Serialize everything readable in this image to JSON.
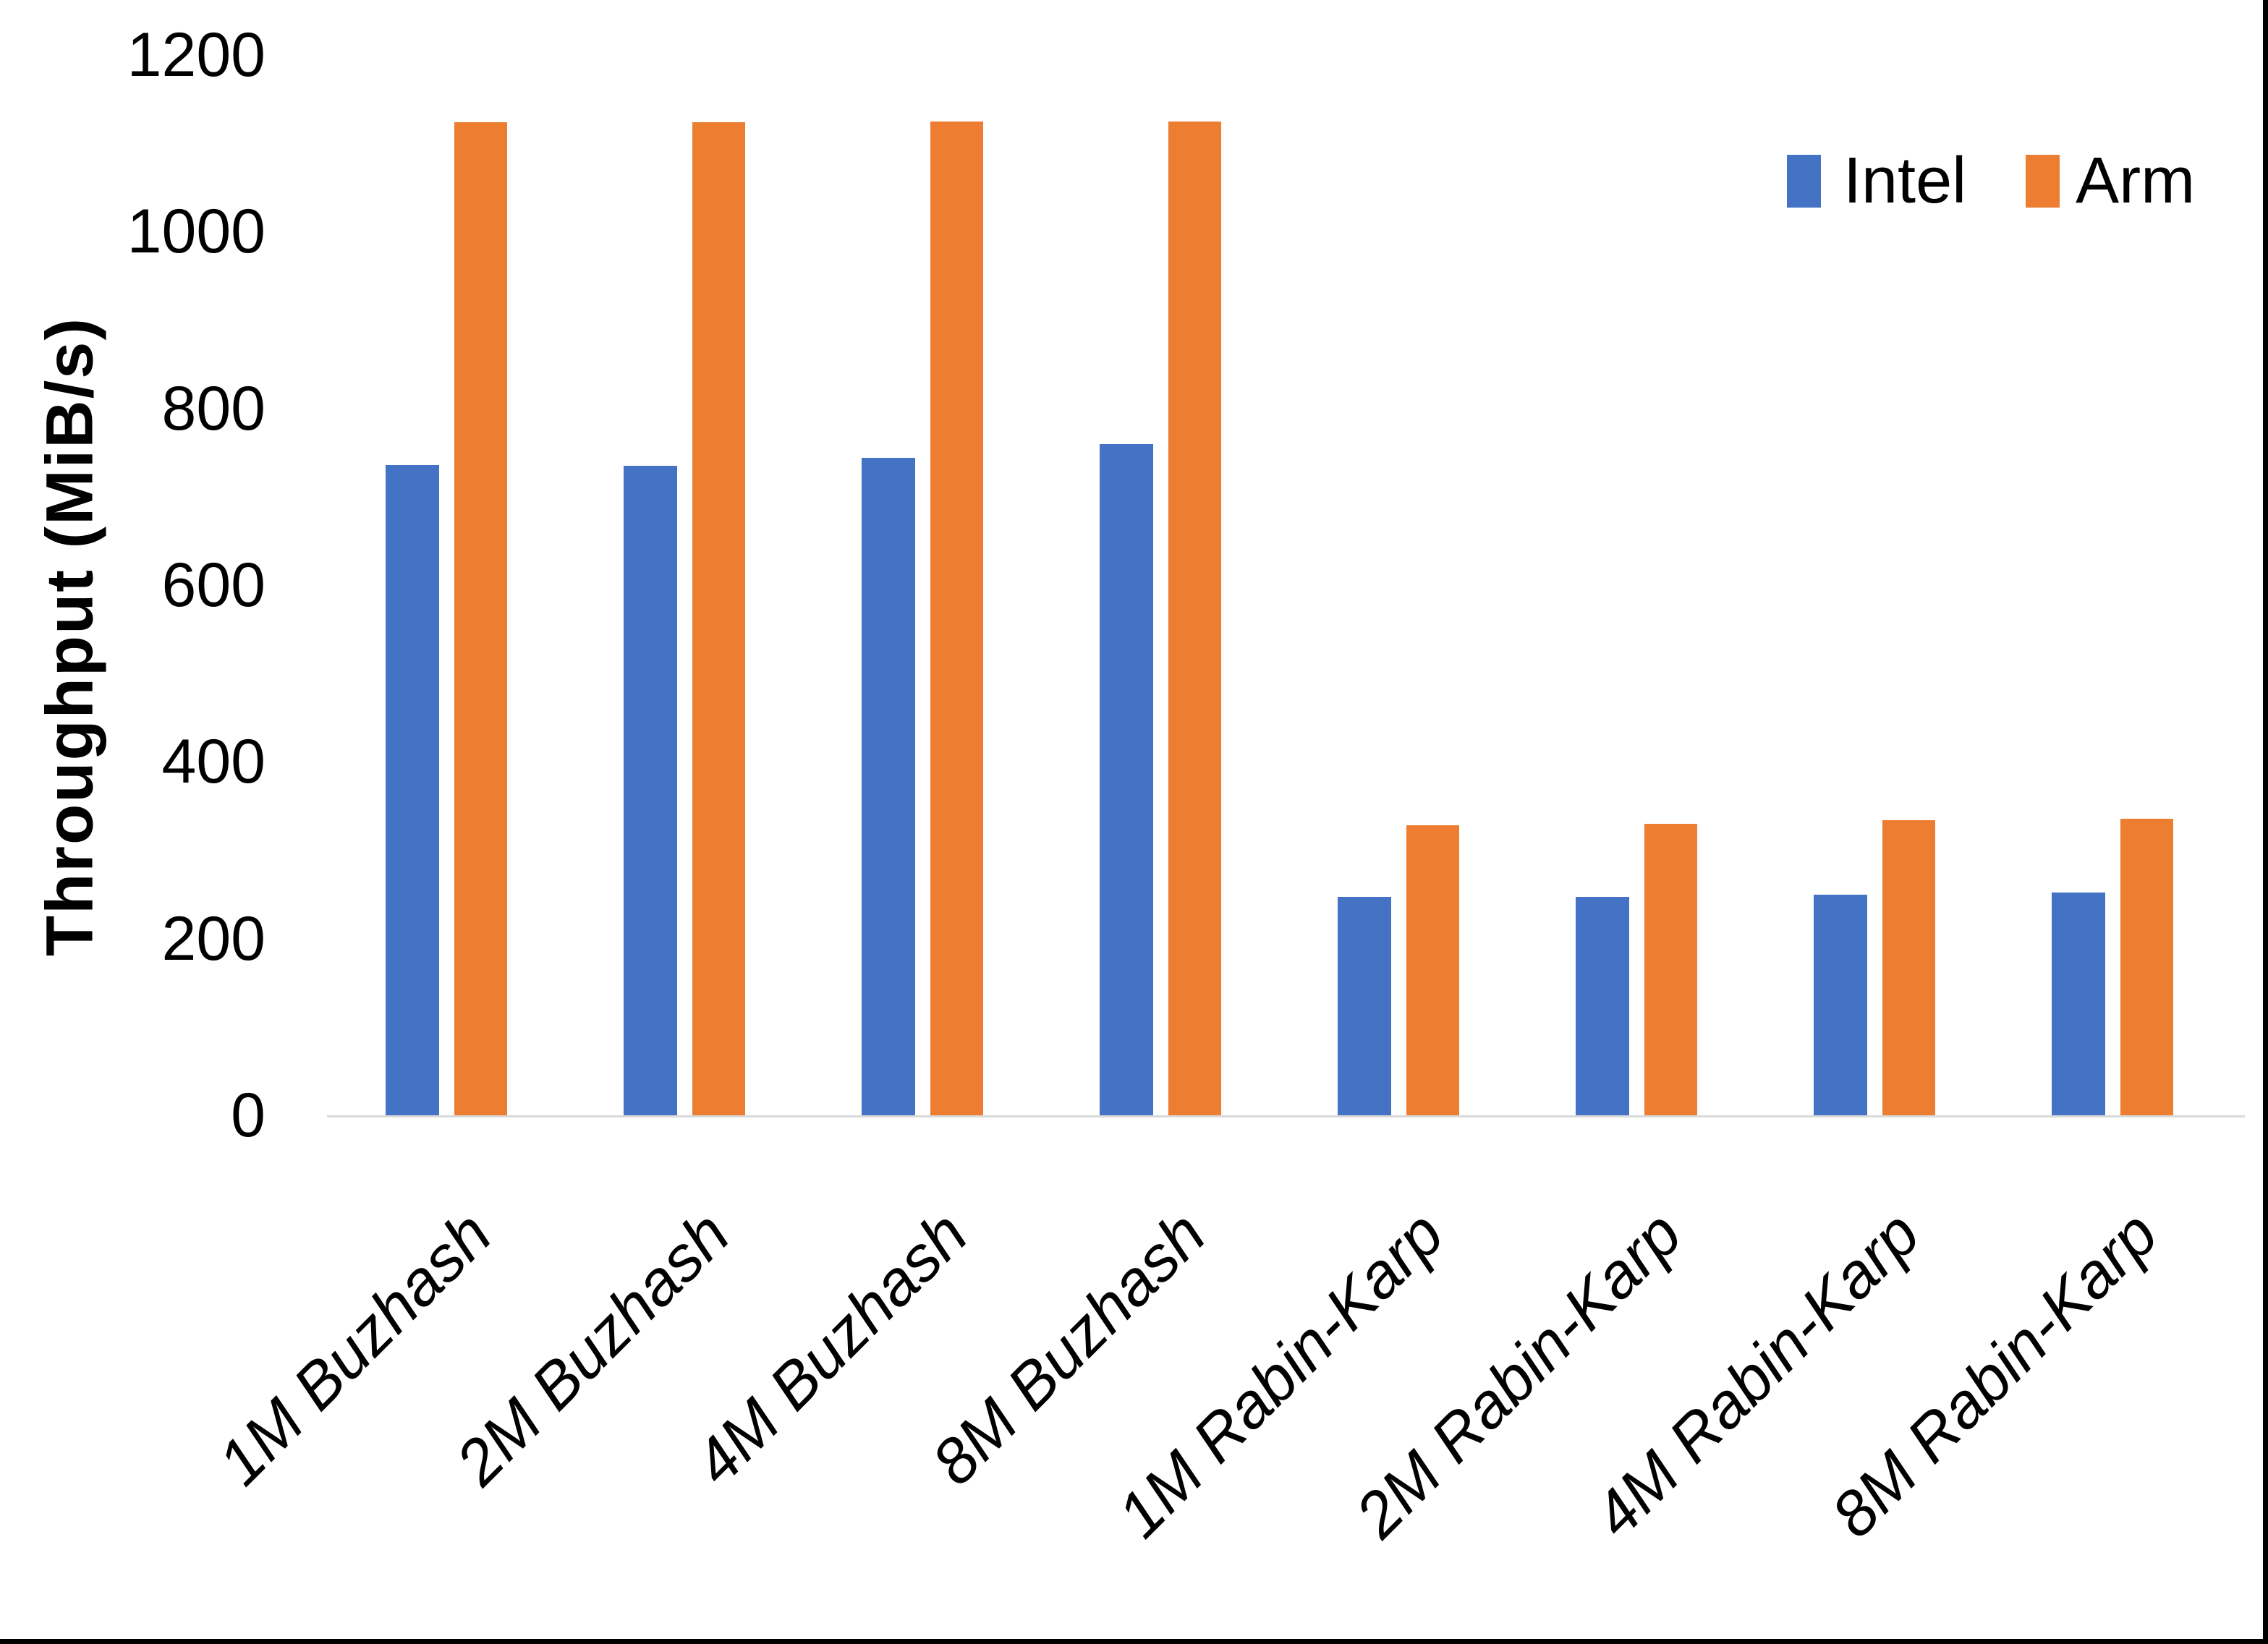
{
  "chart_data": {
    "type": "bar",
    "title": "",
    "xlabel": "",
    "ylabel": "Throughput (MiB/s)",
    "ylim": [
      0,
      1200
    ],
    "yticks": [
      0,
      200,
      400,
      600,
      800,
      1000,
      1200
    ],
    "grid": false,
    "legend_position": "top-right",
    "axis_line_color": "#d9d9d9",
    "categories": [
      "1M Buzhash",
      "2M Buzhash",
      "4M Buzhash",
      "8M Buzhash",
      "1M Rabin-Karp",
      "2M Rabin-Karp",
      "4M Rabin-Karp",
      "8M Rabin-Karp"
    ],
    "series": [
      {
        "name": "Intel",
        "color": "#4472C4",
        "values": [
          736,
          735,
          744,
          760,
          247,
          247,
          250,
          252
        ]
      },
      {
        "name": "Arm",
        "color": "#ED7D31",
        "values": [
          1124,
          1124,
          1125,
          1125,
          328,
          330,
          334,
          336
        ]
      }
    ]
  }
}
